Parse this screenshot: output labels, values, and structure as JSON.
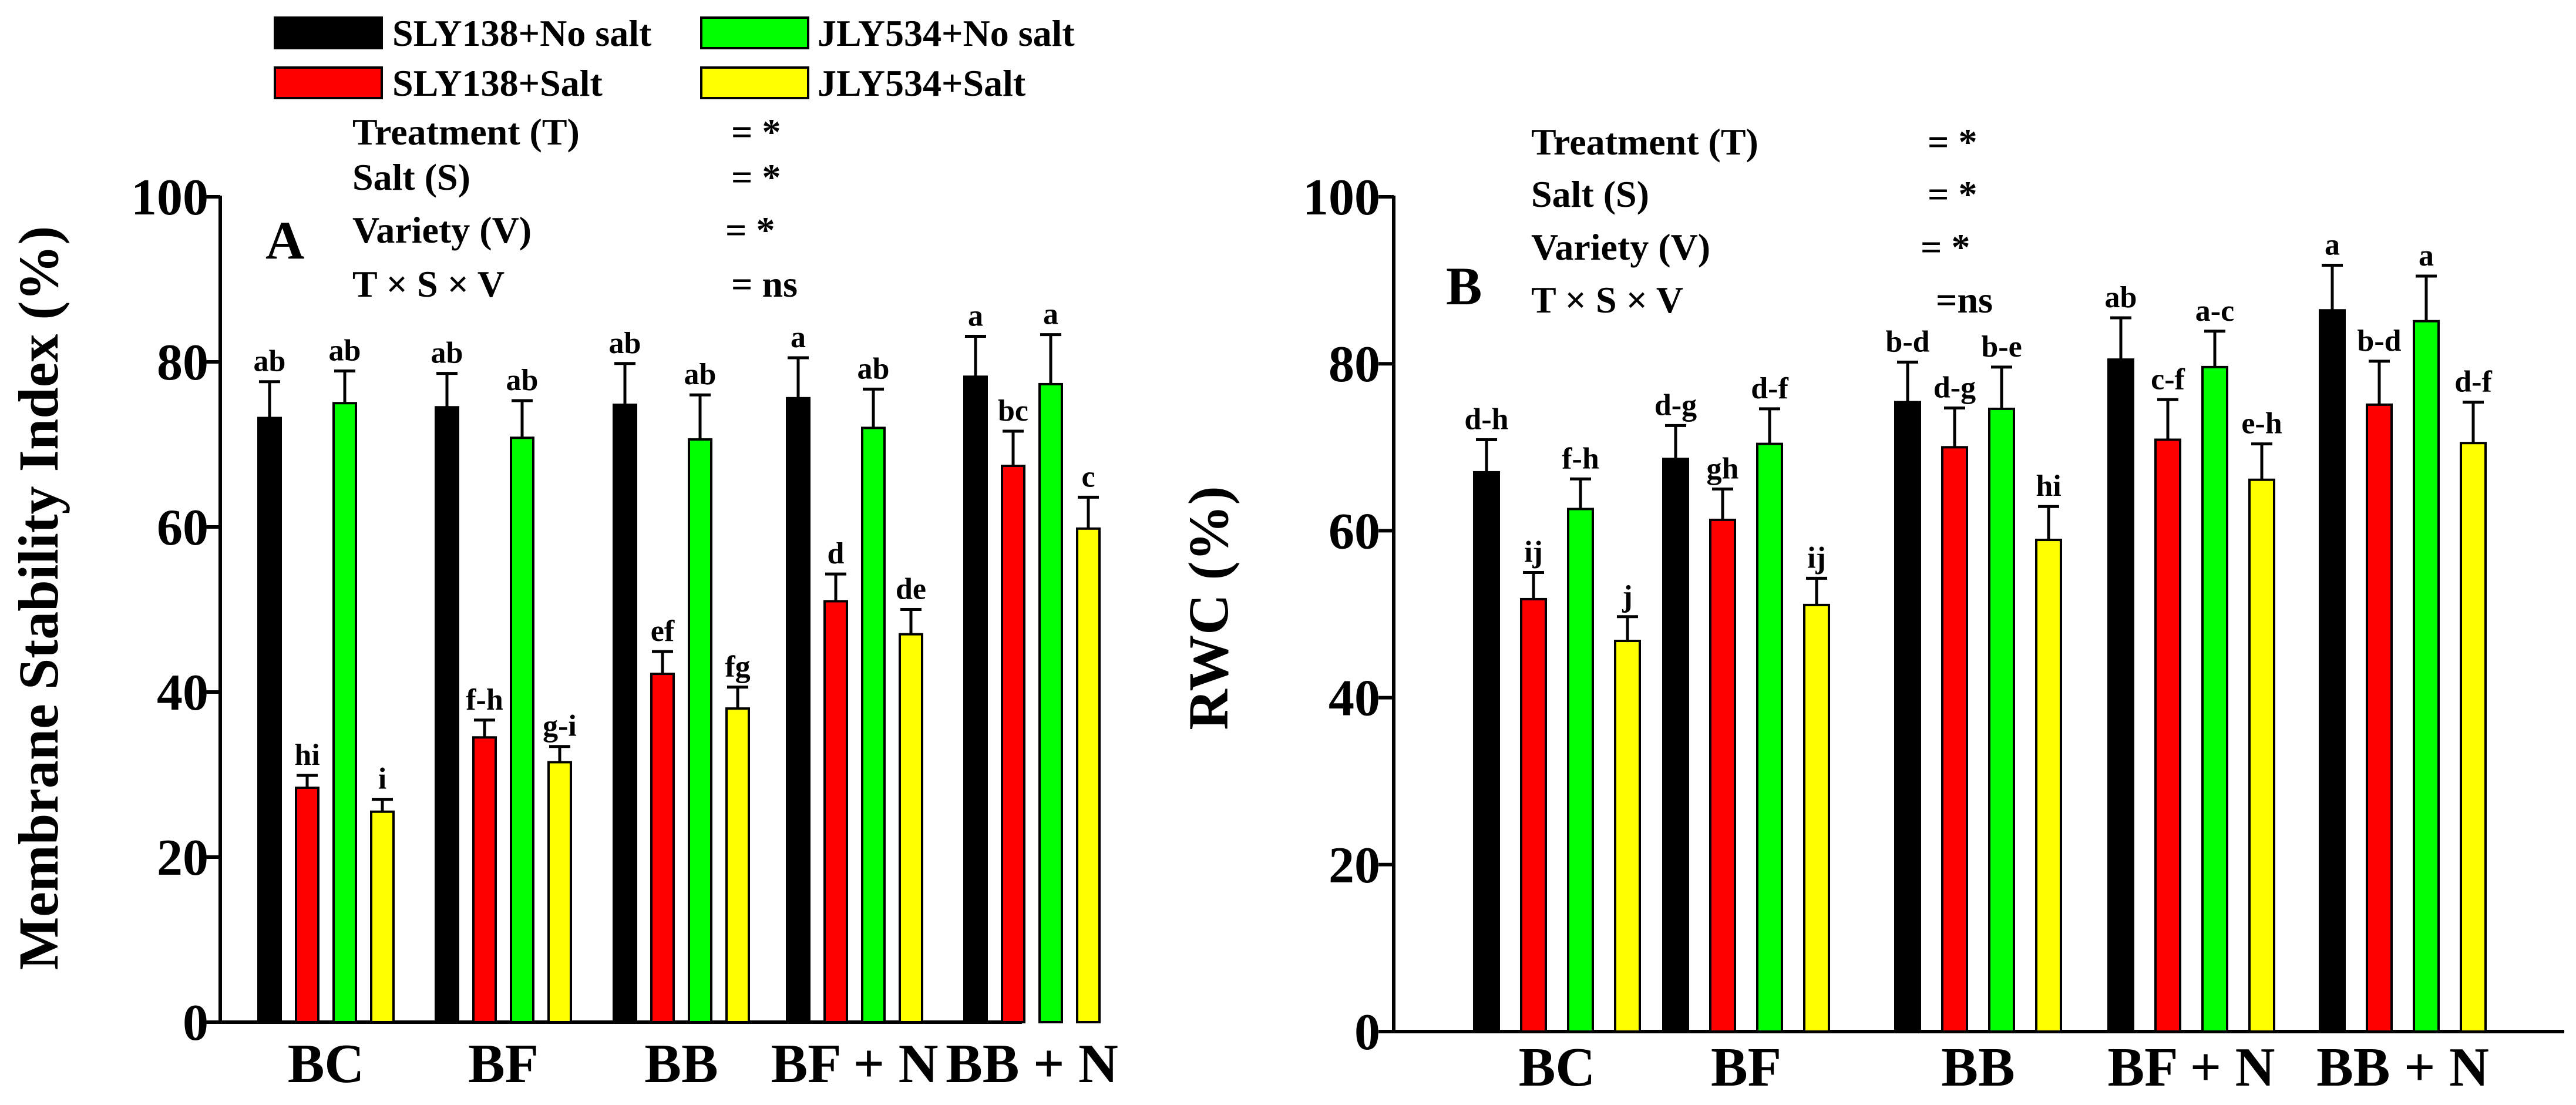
{
  "legend": [
    {
      "label": "SLY138+No salt",
      "color": "#000000"
    },
    {
      "label": "SLY138+Salt",
      "color": "#ff0000"
    },
    {
      "label": "JLY534+No salt",
      "color": "#00ff00"
    },
    {
      "label": "JLY534+Salt",
      "color": "#ffff00"
    }
  ],
  "panel_letter_color": "#9a3fd6",
  "chart_data": [
    {
      "type": "bar",
      "panel": "A",
      "xlabel": "",
      "ylabel": "Membrane Stability Index (%)",
      "ylim": [
        0,
        100
      ],
      "yticks": [
        0,
        20,
        40,
        60,
        80,
        100
      ],
      "categories": [
        "BC",
        "BF",
        "BB",
        "BF + N",
        "BB + N"
      ],
      "series": [
        {
          "name": "SLY138+No salt",
          "values": [
            73.2,
            74.5,
            74.8,
            75.6,
            78.2
          ],
          "errors": [
            4.4,
            4.1,
            5.0,
            4.9,
            4.9
          ],
          "labels": [
            "ab",
            "ab",
            "ab",
            "a",
            "a"
          ]
        },
        {
          "name": "SLY138+Salt",
          "values": [
            28.4,
            34.5,
            42.2,
            51.0,
            67.4
          ],
          "errors": [
            1.5,
            2.1,
            2.7,
            3.3,
            4.2
          ],
          "labels": [
            "hi",
            "f-h",
            "ef",
            "d",
            "bc"
          ]
        },
        {
          "name": "JLY534+No salt",
          "values": [
            75.0,
            70.8,
            70.6,
            72.0,
            77.3
          ],
          "errors": [
            3.9,
            4.5,
            5.4,
            4.7,
            6.0
          ],
          "labels": [
            "ab",
            "ab",
            "ab",
            "ab",
            "a"
          ]
        },
        {
          "name": "JLY534+Salt",
          "values": [
            25.5,
            31.5,
            38.0,
            47.0,
            59.8
          ],
          "errors": [
            1.5,
            1.9,
            2.6,
            3.0,
            3.8
          ],
          "labels": [
            "i",
            "g-i",
            "fg",
            "de",
            "c"
          ]
        }
      ],
      "stats": [
        {
          "term": "Treatment  (T)",
          "result": "=   *"
        },
        {
          "term": "Salt  (S)",
          "result": "=   *"
        },
        {
          "term": "Variety  (V)",
          "result": "=   *"
        },
        {
          "term": "T  ×  S  ×  V",
          "result": "= ns"
        }
      ]
    },
    {
      "type": "bar",
      "panel": "B",
      "xlabel": "",
      "ylabel": "RWC (%)",
      "ylim": [
        0,
        100
      ],
      "yticks": [
        0,
        20,
        40,
        60,
        80,
        100
      ],
      "categories": [
        "BC",
        "BF",
        "BB",
        "BF + N",
        "BB + N"
      ],
      "series": [
        {
          "name": "SLY138+No salt",
          "values": [
            67.0,
            68.6,
            75.4,
            80.5,
            86.4
          ],
          "errors": [
            3.9,
            4.0,
            4.8,
            5.0,
            5.4
          ],
          "labels": [
            "d-h",
            "d-g",
            "b-d",
            "ab",
            "a"
          ]
        },
        {
          "name": "SLY138+Salt",
          "values": [
            51.8,
            61.3,
            70.0,
            70.9,
            75.1
          ],
          "errors": [
            3.2,
            3.7,
            4.7,
            4.8,
            5.2
          ],
          "labels": [
            "ij",
            "gh",
            "d-g",
            "c-f",
            "b-d"
          ]
        },
        {
          "name": "JLY534+No salt",
          "values": [
            62.6,
            70.4,
            74.6,
            79.6,
            85.1
          ],
          "errors": [
            3.6,
            4.2,
            5.0,
            4.3,
            5.4
          ],
          "labels": [
            "f-h",
            "d-f",
            "b-e",
            "a-c",
            "a"
          ]
        },
        {
          "name": "JLY534+Salt",
          "values": [
            46.8,
            51.1,
            58.9,
            66.1,
            70.5
          ],
          "errors": [
            2.9,
            3.2,
            4.0,
            4.3,
            4.9
          ],
          "labels": [
            "j",
            "ij",
            "hi",
            "e-h",
            "d-f"
          ]
        }
      ],
      "stats": [
        {
          "term": "Treatment  (T)",
          "result": "=  *"
        },
        {
          "term": "Salt  (S)",
          "result": "=  *"
        },
        {
          "term": "Variety  (V)",
          "result": "=   *"
        },
        {
          "term": "T  ×  S  ×  V",
          "result": "=ns"
        }
      ]
    }
  ]
}
